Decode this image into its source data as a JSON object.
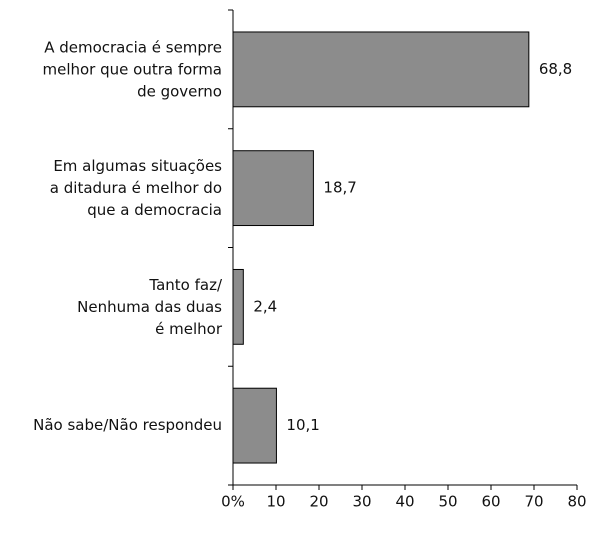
{
  "chart_data": {
    "type": "bar",
    "orientation": "horizontal",
    "categories": [
      "A democracia é sempre\nmelhor que outra forma\nde governo",
      "Em algumas situações\na ditadura é melhor do\nque a democracia",
      "Tanto faz/\nNenhuma das duas\né melhor",
      "Não sabe/Não respondeu"
    ],
    "values": [
      68.8,
      18.7,
      2.4,
      10.1
    ],
    "value_labels": [
      "68,8",
      "18,7",
      "2,4",
      "10,1"
    ],
    "color": "#8c8c8c",
    "xlim": [
      0,
      80
    ],
    "xticks": [
      {
        "value": 0,
        "label": "0%"
      },
      10,
      20,
      30,
      40,
      50,
      60,
      70,
      80
    ]
  }
}
